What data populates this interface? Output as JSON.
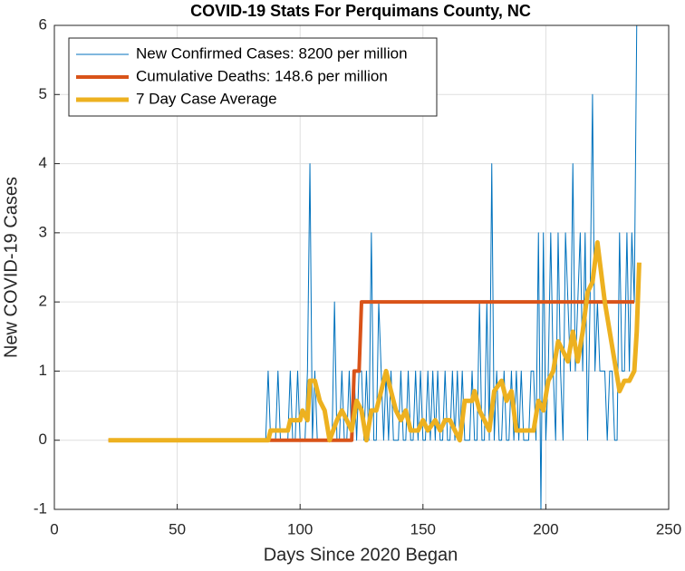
{
  "chart_data": {
    "type": "line",
    "title": "COVID-19 Stats For Perquimans County, NC",
    "xlabel": "Days Since 2020 Began",
    "ylabel": "New COVID-19 Cases",
    "xlim": [
      0,
      250
    ],
    "xticks": [
      0,
      50,
      100,
      150,
      200,
      250
    ],
    "ylim": [
      -1,
      6
    ],
    "yticks": [
      -1,
      0,
      1,
      2,
      3,
      4,
      5,
      6
    ],
    "grid": true,
    "legend": "northwest",
    "series": [
      {
        "name": "New Confirmed Cases: 8200 per million",
        "color": "#0072bd",
        "width": 1,
        "x": [
          22,
          85,
          86,
          87,
          88,
          89,
          90,
          91,
          92,
          93,
          94,
          95,
          96,
          97,
          98,
          99,
          100,
          101,
          102,
          103,
          104,
          105,
          106,
          107,
          108,
          109,
          110,
          111,
          112,
          113,
          114,
          115,
          116,
          117,
          118,
          119,
          120,
          121,
          122,
          123,
          124,
          125,
          126,
          127,
          128,
          129,
          130,
          131,
          132,
          133,
          134,
          135,
          136,
          137,
          138,
          139,
          140,
          141,
          142,
          143,
          144,
          145,
          146,
          147,
          148,
          149,
          150,
          151,
          152,
          153,
          154,
          155,
          156,
          157,
          158,
          159,
          160,
          161,
          162,
          163,
          164,
          165,
          166,
          167,
          168,
          169,
          170,
          171,
          172,
          173,
          174,
          175,
          176,
          177,
          178,
          179,
          180,
          181,
          182,
          183,
          184,
          185,
          186,
          187,
          188,
          189,
          190,
          191,
          192,
          193,
          194,
          195,
          196,
          197,
          198,
          199,
          200,
          201,
          202,
          203,
          204,
          205,
          206,
          207,
          208,
          209,
          210,
          211,
          212,
          213,
          214,
          215,
          216,
          217,
          218,
          219,
          220,
          221,
          222,
          223,
          224,
          225,
          226,
          227,
          228,
          229,
          230,
          231,
          232,
          233,
          234,
          235,
          236,
          237,
          238
        ],
        "values": [
          0,
          0,
          0,
          1,
          0,
          0,
          0,
          1,
          0,
          0,
          0,
          0,
          1,
          0,
          0,
          1,
          0,
          0,
          0,
          1,
          4,
          0,
          1,
          0,
          0,
          0,
          0,
          0,
          0,
          0,
          2,
          0,
          0,
          1,
          0,
          0,
          1,
          0,
          1,
          0,
          1,
          1,
          0,
          1,
          0,
          3,
          0,
          0,
          2,
          1,
          0,
          1,
          0,
          1,
          0,
          0,
          0,
          1,
          0,
          0,
          1,
          0,
          0,
          1,
          0,
          1,
          0,
          0,
          1,
          0,
          1,
          0,
          1,
          0,
          0,
          1,
          0,
          0,
          1,
          0,
          1,
          0,
          1,
          0,
          0,
          0,
          1,
          0,
          0,
          2,
          0,
          0,
          2,
          0,
          4,
          0,
          1,
          0,
          0,
          1,
          0,
          0,
          1,
          0,
          1,
          0,
          1,
          0,
          0,
          0,
          1,
          1,
          0,
          3,
          -1,
          3,
          0,
          1,
          3,
          1,
          0,
          3,
          1,
          0,
          3,
          2,
          1,
          4,
          1,
          2,
          3,
          1,
          3,
          0,
          2,
          5,
          1,
          2,
          1,
          1,
          1,
          0,
          1,
          1,
          0,
          0,
          3,
          1,
          1,
          3,
          1,
          3,
          2,
          6,
          6
        ]
      },
      {
        "name": "Cumulative Deaths: 148.6 per million",
        "color": "#d95319",
        "width": 4,
        "x": [
          22,
          121,
          122,
          124,
          125,
          236
        ],
        "values": [
          0,
          0,
          1,
          1,
          2,
          2
        ]
      },
      {
        "name": "7 Day Case Average",
        "color": "#edb120",
        "width": 5,
        "x": [
          22,
          87,
          88,
          95,
          96,
          100,
          101,
          103,
          104,
          106,
          108,
          110,
          112,
          115,
          117,
          119,
          121,
          123,
          125,
          127,
          129,
          131,
          133,
          135,
          137,
          139,
          141,
          143,
          145,
          148,
          150,
          152,
          155,
          157,
          159,
          161,
          163,
          165,
          167,
          170,
          171,
          173,
          175,
          177,
          179,
          182,
          184,
          186,
          188,
          195,
          197,
          199,
          201,
          203,
          205,
          207,
          209,
          211,
          213,
          215,
          217,
          219,
          221,
          222,
          224,
          226,
          228,
          230,
          232,
          234,
          236,
          237,
          238
        ],
        "values": [
          0,
          0,
          0.14,
          0.14,
          0.29,
          0.29,
          0.43,
          0.29,
          0.86,
          0.86,
          0.57,
          0.43,
          0,
          0.29,
          0.43,
          0.29,
          0.14,
          0.57,
          0.43,
          0,
          0.43,
          0.43,
          0.71,
          1.0,
          0.71,
          0.43,
          0.29,
          0.43,
          0.14,
          0.14,
          0.29,
          0.14,
          0.29,
          0.14,
          0.29,
          0.29,
          0.14,
          0,
          0.57,
          0.57,
          0.71,
          0.43,
          0.29,
          0.14,
          0.71,
          0.86,
          0.57,
          0.71,
          0.14,
          0.14,
          0.57,
          0.43,
          0.86,
          1.0,
          1.43,
          1.29,
          1.14,
          1.57,
          1.14,
          1.57,
          2.14,
          2.29,
          2.86,
          2.57,
          2.0,
          1.57,
          1.14,
          0.71,
          0.86,
          0.86,
          1.0,
          1.57,
          2.57
        ]
      }
    ]
  }
}
